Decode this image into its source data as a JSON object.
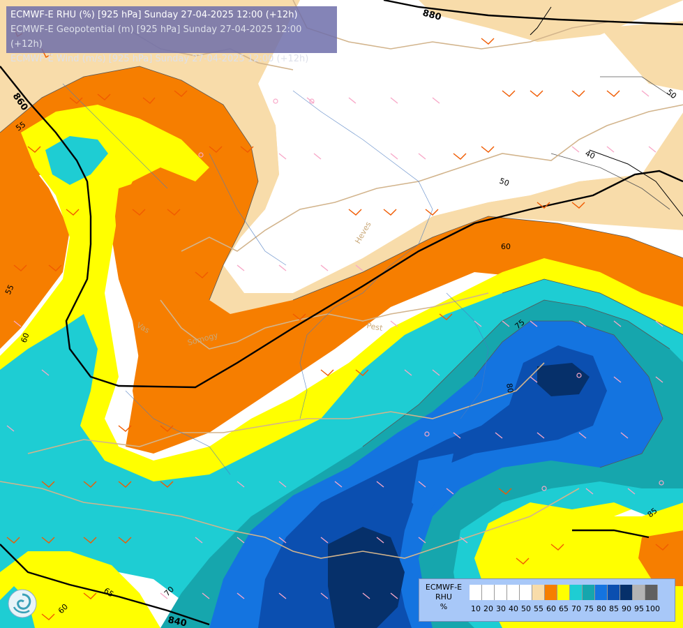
{
  "header": {
    "line1": "ECMWF-E RHU (%) [925 hPa] Sunday 27-04-2025 12:00 (+12h)",
    "line2": "ECMWF-E Geopotential (m) [925 hPa] Sunday 27-04-2025 12:00 (+12h)",
    "line3": "ECMWF-E Wind (m/s) [925 hPa] Sunday 27-04-2025 12:00 (+12h)"
  },
  "legend": {
    "title_line1": "ECMWF-E",
    "title_line2": "RHU",
    "title_line3": "%",
    "classes": [
      {
        "label": "10",
        "color": "#ffffff"
      },
      {
        "label": "20",
        "color": "#ffffff"
      },
      {
        "label": "30",
        "color": "#ffffff"
      },
      {
        "label": "40",
        "color": "#ffffff"
      },
      {
        "label": "50",
        "color": "#ffffff"
      },
      {
        "label": "55",
        "color": "#f8dcaa"
      },
      {
        "label": "60",
        "color": "#f67e00"
      },
      {
        "label": "65",
        "color": "#ffff00"
      },
      {
        "label": "70",
        "color": "#1ecdd3"
      },
      {
        "label": "75",
        "color": "#16a6ad"
      },
      {
        "label": "80",
        "color": "#1474e0"
      },
      {
        "label": "85",
        "color": "#0b4fb0"
      },
      {
        "label": "90",
        "color": "#06306a"
      },
      {
        "label": "95",
        "color": "#b4b4b4"
      },
      {
        "label": "100",
        "color": "#606060"
      }
    ]
  },
  "geopotential_labels": [
    "880",
    "860",
    "840"
  ],
  "rh_labels": [
    "50",
    "40",
    "50",
    "55",
    "55",
    "60",
    "60",
    "60",
    "65",
    "70",
    "75",
    "80",
    "85"
  ],
  "place_labels": [
    "Pest",
    "Vas",
    "Somogy",
    "Heves"
  ],
  "colors": {
    "rh_55": "#f8dcaa",
    "rh_60": "#f67e00",
    "rh_65": "#ffff00",
    "rh_70": "#1ecdd3",
    "rh_75": "#16a6ad",
    "rh_80": "#1474e0",
    "rh_85": "#0b4fb0",
    "rh_90": "#06306a",
    "wind_barb_low": "#f8a8c8",
    "wind_barb_high": "#f05a00",
    "border": "#d2b48c",
    "river": "#4a7ac0"
  },
  "icons": {
    "logo": "ecmwf-swirl-logo"
  }
}
